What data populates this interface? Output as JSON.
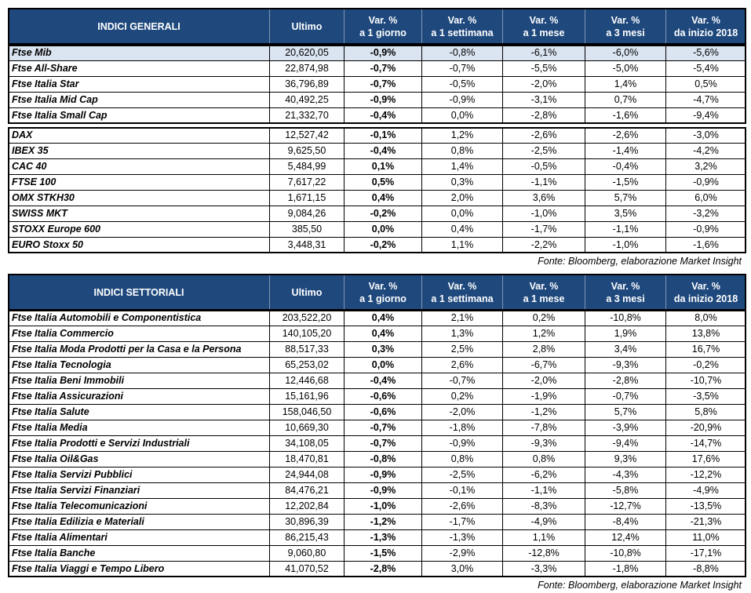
{
  "table1": {
    "header": [
      "INDICI GENERALI",
      "Ultimo",
      [
        "Var. %",
        "a 1 giorno"
      ],
      [
        "Var. %",
        "a 1 settimana"
      ],
      [
        "Var. %",
        "a 1 mese"
      ],
      [
        "Var. %",
        "a 3 mesi"
      ],
      [
        "Var. %",
        "da inizio 2018"
      ]
    ],
    "groups": [
      [
        [
          "Ftse Mib",
          "20,620,05",
          "-0,9%",
          "-0,8%",
          "-6,1%",
          "-6,0%",
          "-5,6%"
        ],
        [
          "Ftse All-Share",
          "22,874,98",
          "-0,7%",
          "-0,7%",
          "-5,5%",
          "-5,0%",
          "-5,4%"
        ],
        [
          "Ftse Italia Star",
          "36,796,89",
          "-0,7%",
          "-0,5%",
          "-2,0%",
          "1,4%",
          "0,5%"
        ],
        [
          "Ftse Italia Mid Cap",
          "40,492,25",
          "-0,9%",
          "-0,9%",
          "-3,1%",
          "0,7%",
          "-4,7%"
        ],
        [
          "Ftse Italia Small Cap",
          "21,332,70",
          "-0,4%",
          "0,0%",
          "-2,8%",
          "-1,6%",
          "-9,4%"
        ]
      ],
      [
        [
          "DAX",
          "12,527,42",
          "-0,1%",
          "1,2%",
          "-2,6%",
          "-2,6%",
          "-3,0%"
        ],
        [
          "IBEX 35",
          "9,625,50",
          "-0,4%",
          "0,8%",
          "-2,5%",
          "-1,4%",
          "-4,2%"
        ],
        [
          "CAC 40",
          "5,484,99",
          "0,1%",
          "1,4%",
          "-0,5%",
          "-0,4%",
          "3,2%"
        ],
        [
          "FTSE 100",
          "7,617,22",
          "0,5%",
          "0,3%",
          "-1,1%",
          "-1,5%",
          "-0,9%"
        ],
        [
          "OMX STKH30",
          "1,671,15",
          "0,4%",
          "2,0%",
          "3,6%",
          "5,7%",
          "6,0%"
        ],
        [
          "SWISS MKT",
          "9,084,26",
          "-0,2%",
          "0,0%",
          "-1,0%",
          "3,5%",
          "-3,2%"
        ],
        [
          "STOXX Europe 600",
          "385,50",
          "0,0%",
          "0,4%",
          "-1,7%",
          "-1,1%",
          "-0,9%"
        ],
        [
          "EURO Stoxx 50",
          "3,448,31",
          "-0,2%",
          "1,1%",
          "-2,2%",
          "-1,0%",
          "-1,6%"
        ]
      ]
    ],
    "source": "Fonte: Bloomberg, elaborazione Market Insight"
  },
  "table2": {
    "header": [
      "INDICI SETTORIALI",
      "Ultimo",
      [
        "Var. %",
        "a 1 giorno"
      ],
      [
        "Var. %",
        "a 1 settimana"
      ],
      [
        "Var. %",
        "a 1 mese"
      ],
      [
        "Var. %",
        "a 3 mesi"
      ],
      [
        "Var. %",
        "da inizio 2018"
      ]
    ],
    "groups": [
      [
        [
          "Ftse Italia Automobili e Componentistica",
          "203,522,20",
          "0,4%",
          "2,1%",
          "0,2%",
          "-10,8%",
          "8,0%"
        ],
        [
          "Ftse Italia Commercio",
          "140,105,20",
          "0,4%",
          "1,3%",
          "1,2%",
          "1,9%",
          "13,8%"
        ],
        [
          "Ftse Italia Moda Prodotti per la Casa e la Persona",
          "88,517,33",
          "0,3%",
          "2,5%",
          "2,8%",
          "3,4%",
          "16,7%"
        ],
        [
          "Ftse Italia Tecnologia",
          "65,253,02",
          "0,0%",
          "2,6%",
          "-6,7%",
          "-9,3%",
          "-0,2%"
        ],
        [
          "Ftse Italia Beni Immobili",
          "12,446,68",
          "-0,4%",
          "-0,7%",
          "-2,0%",
          "-2,8%",
          "-10,7%"
        ],
        [
          "Ftse Italia Assicurazioni",
          "15,161,96",
          "-0,6%",
          "0,2%",
          "-1,9%",
          "-0,7%",
          "-3,5%"
        ],
        [
          "Ftse Italia Salute",
          "158,046,50",
          "-0,6%",
          "-2,0%",
          "-1,2%",
          "5,7%",
          "5,8%"
        ],
        [
          "Ftse Italia Media",
          "10,669,30",
          "-0,7%",
          "-1,8%",
          "-7,8%",
          "-3,9%",
          "-20,9%"
        ],
        [
          "Ftse Italia Prodotti e Servizi Industriali",
          "34,108,05",
          "-0,7%",
          "-0,9%",
          "-9,3%",
          "-9,4%",
          "-14,7%"
        ],
        [
          "Ftse Italia Oil&Gas",
          "18,470,81",
          "-0,8%",
          "0,8%",
          "0,8%",
          "9,3%",
          "17,6%"
        ],
        [
          "Ftse Italia Servizi Pubblici",
          "24,944,08",
          "-0,9%",
          "-2,5%",
          "-6,2%",
          "-4,3%",
          "-12,2%"
        ],
        [
          "Ftse Italia Servizi Finanziari",
          "84,476,21",
          "-0,9%",
          "-0,1%",
          "-1,1%",
          "-5,8%",
          "-4,9%"
        ],
        [
          "Ftse Italia Telecomunicazioni",
          "12,202,84",
          "-1,0%",
          "-2,6%",
          "-8,3%",
          "-12,7%",
          "-13,5%"
        ],
        [
          "Ftse Italia Edilizia e Materiali",
          "30,896,39",
          "-1,2%",
          "-1,7%",
          "-4,9%",
          "-8,4%",
          "-21,3%"
        ],
        [
          "Ftse Italia Alimentari",
          "86,215,43",
          "-1,3%",
          "-1,3%",
          "1,1%",
          "12,4%",
          "11,0%"
        ],
        [
          "Ftse Italia Banche",
          "9,060,80",
          "-1,5%",
          "-2,9%",
          "-12,8%",
          "-10,8%",
          "-17,1%"
        ],
        [
          "Ftse Italia Viaggi e Tempo Libero",
          "41,070,52",
          "-2,8%",
          "3,0%",
          "-3,3%",
          "-1,8%",
          "-8,8%"
        ]
      ]
    ],
    "source": "Fonte: Bloomberg, elaborazione Market Insight"
  }
}
